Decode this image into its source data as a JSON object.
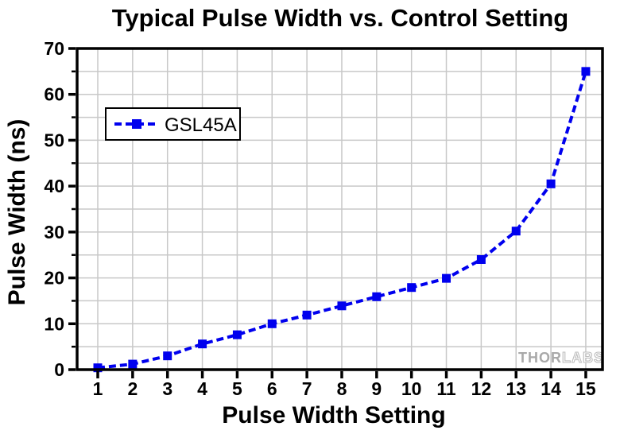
{
  "chart_data": {
    "type": "line",
    "title": "Typical Pulse Width vs. Control Setting",
    "xlabel": "Pulse Width Setting",
    "ylabel": "Pulse Width (ns)",
    "xlim": [
      0.407,
      15.48
    ],
    "ylim": [
      0,
      70
    ],
    "x_major_ticks": [
      1,
      2,
      3,
      4,
      5,
      6,
      7,
      8,
      9,
      10,
      11,
      12,
      13,
      14,
      15
    ],
    "y_major_ticks": [
      0,
      10,
      20,
      30,
      40,
      50,
      60,
      70
    ],
    "y_minor_ticks": [
      5,
      15,
      25,
      35,
      45,
      55,
      65
    ],
    "grid_on": true,
    "grid": {
      "x_lines": [
        1,
        2,
        3,
        4,
        5,
        6,
        7,
        8,
        9,
        10,
        11,
        12,
        13,
        14,
        15
      ],
      "y_lines": [
        5,
        10,
        15,
        20,
        25,
        30,
        35,
        40,
        45,
        50,
        55,
        60,
        65
      ],
      "color": "#c8c8c8"
    },
    "legend_position": "upper-left-inside",
    "series": [
      {
        "name": "GSL45A",
        "color": "#0000ee",
        "marker": "square",
        "line_style": "dashed",
        "x": [
          1,
          2,
          3,
          4,
          5,
          6,
          7,
          8,
          9,
          10,
          11,
          12,
          13,
          14,
          15
        ],
        "y": [
          0.4,
          1.2,
          3.0,
          5.6,
          7.6,
          10.0,
          11.9,
          13.9,
          15.9,
          17.9,
          19.9,
          24.0,
          30.2,
          40.5,
          65.0
        ]
      }
    ]
  },
  "legend": {
    "label": "GSL45A"
  },
  "watermark": {
    "part1": "THOR",
    "part2": "LABS"
  },
  "styles": {
    "accent_blue": "#0000ee",
    "grid_gray": "#c8c8c8",
    "frame_black": "#000000",
    "watermark_gray": "#a9a9a9",
    "background": "#ffffff"
  }
}
